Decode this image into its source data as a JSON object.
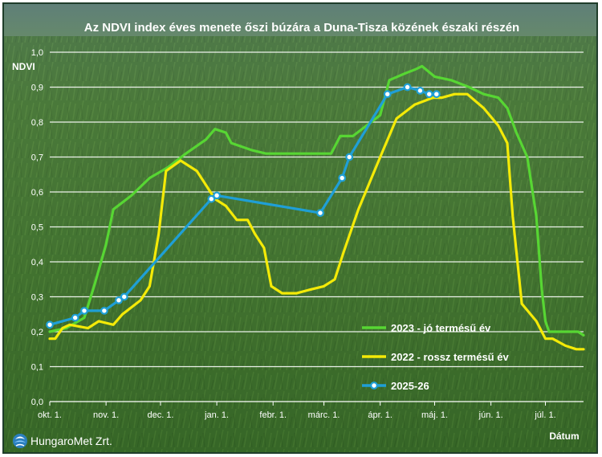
{
  "chart_data": {
    "type": "line",
    "title": "Az NDVI index éves menete őszi búzára a Duna-Tisza közének északi részén",
    "ylabel": "NDVI",
    "xlabel": "Dátum",
    "ylim": [
      0,
      1
    ],
    "yticks": [
      "0,0",
      "0,1",
      "0,2",
      "0,3",
      "0,4",
      "0,5",
      "0,6",
      "0,7",
      "0,8",
      "0,9",
      "1,0"
    ],
    "xlim": [
      "2025-10-01",
      "2026-07-22"
    ],
    "xticks": [
      {
        "date": "2025-10-01",
        "label": "okt. 1."
      },
      {
        "date": "2025-11-01",
        "label": "nov. 1."
      },
      {
        "date": "2025-12-01",
        "label": "dec. 1."
      },
      {
        "date": "2026-01-01",
        "label": "jan. 1."
      },
      {
        "date": "2026-02-01",
        "label": "febr. 1."
      },
      {
        "date": "2026-03-01",
        "label": "márc. 1."
      },
      {
        "date": "2026-04-01",
        "label": "ápr. 1."
      },
      {
        "date": "2026-05-01",
        "label": "máj. 1."
      },
      {
        "date": "2026-06-01",
        "label": "jún. 1."
      },
      {
        "date": "2026-07-01",
        "label": "júl. 1."
      }
    ],
    "grid": "horizontal",
    "legend_position": "bottom-right",
    "series": [
      {
        "name": "2023 - jó termésű év",
        "color": "#57d633",
        "marker": "none",
        "points": [
          [
            "2025-10-01",
            0.2
          ],
          [
            "2025-10-10",
            0.21
          ],
          [
            "2025-10-20",
            0.24
          ],
          [
            "2025-10-26",
            0.34
          ],
          [
            "2025-11-01",
            0.45
          ],
          [
            "2025-11-05",
            0.55
          ],
          [
            "2025-11-15",
            0.59
          ],
          [
            "2025-11-25",
            0.64
          ],
          [
            "2025-12-05",
            0.67
          ],
          [
            "2025-12-15",
            0.71
          ],
          [
            "2025-12-26",
            0.75
          ],
          [
            "2025-12-31",
            0.78
          ],
          [
            "2026-01-06",
            0.77
          ],
          [
            "2026-01-09",
            0.74
          ],
          [
            "2026-01-20",
            0.72
          ],
          [
            "2026-01-28",
            0.71
          ],
          [
            "2026-02-10",
            0.71
          ],
          [
            "2026-02-20",
            0.71
          ],
          [
            "2026-03-01",
            0.71
          ],
          [
            "2026-03-05",
            0.71
          ],
          [
            "2026-03-10",
            0.76
          ],
          [
            "2026-03-17",
            0.76
          ],
          [
            "2026-03-27",
            0.8
          ],
          [
            "2026-04-01",
            0.82
          ],
          [
            "2026-04-06",
            0.92
          ],
          [
            "2026-04-15",
            0.94
          ],
          [
            "2026-04-20",
            0.95
          ],
          [
            "2026-04-24",
            0.96
          ],
          [
            "2026-05-01",
            0.93
          ],
          [
            "2026-05-10",
            0.92
          ],
          [
            "2026-05-20",
            0.9
          ],
          [
            "2026-05-28",
            0.88
          ],
          [
            "2026-06-05",
            0.87
          ],
          [
            "2026-06-10",
            0.84
          ],
          [
            "2026-06-15",
            0.77
          ],
          [
            "2026-06-21",
            0.7
          ],
          [
            "2026-06-26",
            0.53
          ],
          [
            "2026-06-29",
            0.32
          ],
          [
            "2026-07-01",
            0.23
          ],
          [
            "2026-07-03",
            0.2
          ],
          [
            "2026-07-10",
            0.2
          ],
          [
            "2026-07-19",
            0.2
          ],
          [
            "2026-07-22",
            0.19
          ]
        ]
      },
      {
        "name": "2022 - rossz termésű év",
        "color": "#f4ea07",
        "marker": "none",
        "points": [
          [
            "2025-10-01",
            0.18
          ],
          [
            "2025-10-04",
            0.18
          ],
          [
            "2025-10-08",
            0.21
          ],
          [
            "2025-10-12",
            0.22
          ],
          [
            "2025-10-22",
            0.21
          ],
          [
            "2025-10-28",
            0.23
          ],
          [
            "2025-11-05",
            0.22
          ],
          [
            "2025-11-10",
            0.25
          ],
          [
            "2025-11-20",
            0.29
          ],
          [
            "2025-11-25",
            0.33
          ],
          [
            "2025-11-30",
            0.48
          ],
          [
            "2025-12-04",
            0.66
          ],
          [
            "2025-12-12",
            0.69
          ],
          [
            "2025-12-21",
            0.66
          ],
          [
            "2025-12-31",
            0.58
          ],
          [
            "2026-01-06",
            0.56
          ],
          [
            "2026-01-12",
            0.52
          ],
          [
            "2026-01-18",
            0.52
          ],
          [
            "2026-01-22",
            0.48
          ],
          [
            "2026-01-27",
            0.44
          ],
          [
            "2026-01-31",
            0.33
          ],
          [
            "2026-02-06",
            0.31
          ],
          [
            "2026-02-14",
            0.31
          ],
          [
            "2026-02-21",
            0.32
          ],
          [
            "2026-03-01",
            0.33
          ],
          [
            "2026-03-07",
            0.35
          ],
          [
            "2026-03-12",
            0.43
          ],
          [
            "2026-03-20",
            0.55
          ],
          [
            "2026-04-01",
            0.7
          ],
          [
            "2026-04-10",
            0.81
          ],
          [
            "2026-04-20",
            0.85
          ],
          [
            "2026-04-30",
            0.87
          ],
          [
            "2026-05-05",
            0.87
          ],
          [
            "2026-05-12",
            0.88
          ],
          [
            "2026-05-19",
            0.88
          ],
          [
            "2026-05-28",
            0.84
          ],
          [
            "2026-06-05",
            0.79
          ],
          [
            "2026-06-10",
            0.74
          ],
          [
            "2026-06-13",
            0.53
          ],
          [
            "2026-06-18",
            0.28
          ],
          [
            "2026-06-26",
            0.23
          ],
          [
            "2026-07-01",
            0.18
          ],
          [
            "2026-07-05",
            0.18
          ],
          [
            "2026-07-12",
            0.16
          ],
          [
            "2026-07-18",
            0.15
          ],
          [
            "2026-07-22",
            0.15
          ]
        ]
      },
      {
        "name": "2025-26",
        "color": "#1f9fd6",
        "marker": "circle",
        "points": [
          [
            "2025-10-01",
            0.22
          ],
          [
            "2025-10-15",
            0.24
          ],
          [
            "2025-10-20",
            0.26
          ],
          [
            "2025-10-31",
            0.26
          ],
          [
            "2025-11-08",
            0.29
          ],
          [
            "2025-11-11",
            0.3
          ],
          [
            "2025-12-29",
            0.58
          ],
          [
            "2026-01-01",
            0.59
          ],
          [
            "2026-02-27",
            0.54
          ],
          [
            "2026-03-11",
            0.64
          ],
          [
            "2026-03-15",
            0.7
          ],
          [
            "2026-04-05",
            0.88
          ],
          [
            "2026-04-16",
            0.9
          ],
          [
            "2026-04-23",
            0.89
          ],
          [
            "2026-04-28",
            0.88
          ],
          [
            "2026-05-02",
            0.88
          ]
        ]
      }
    ]
  },
  "logo": {
    "text": "HungaroMet Zrt."
  }
}
